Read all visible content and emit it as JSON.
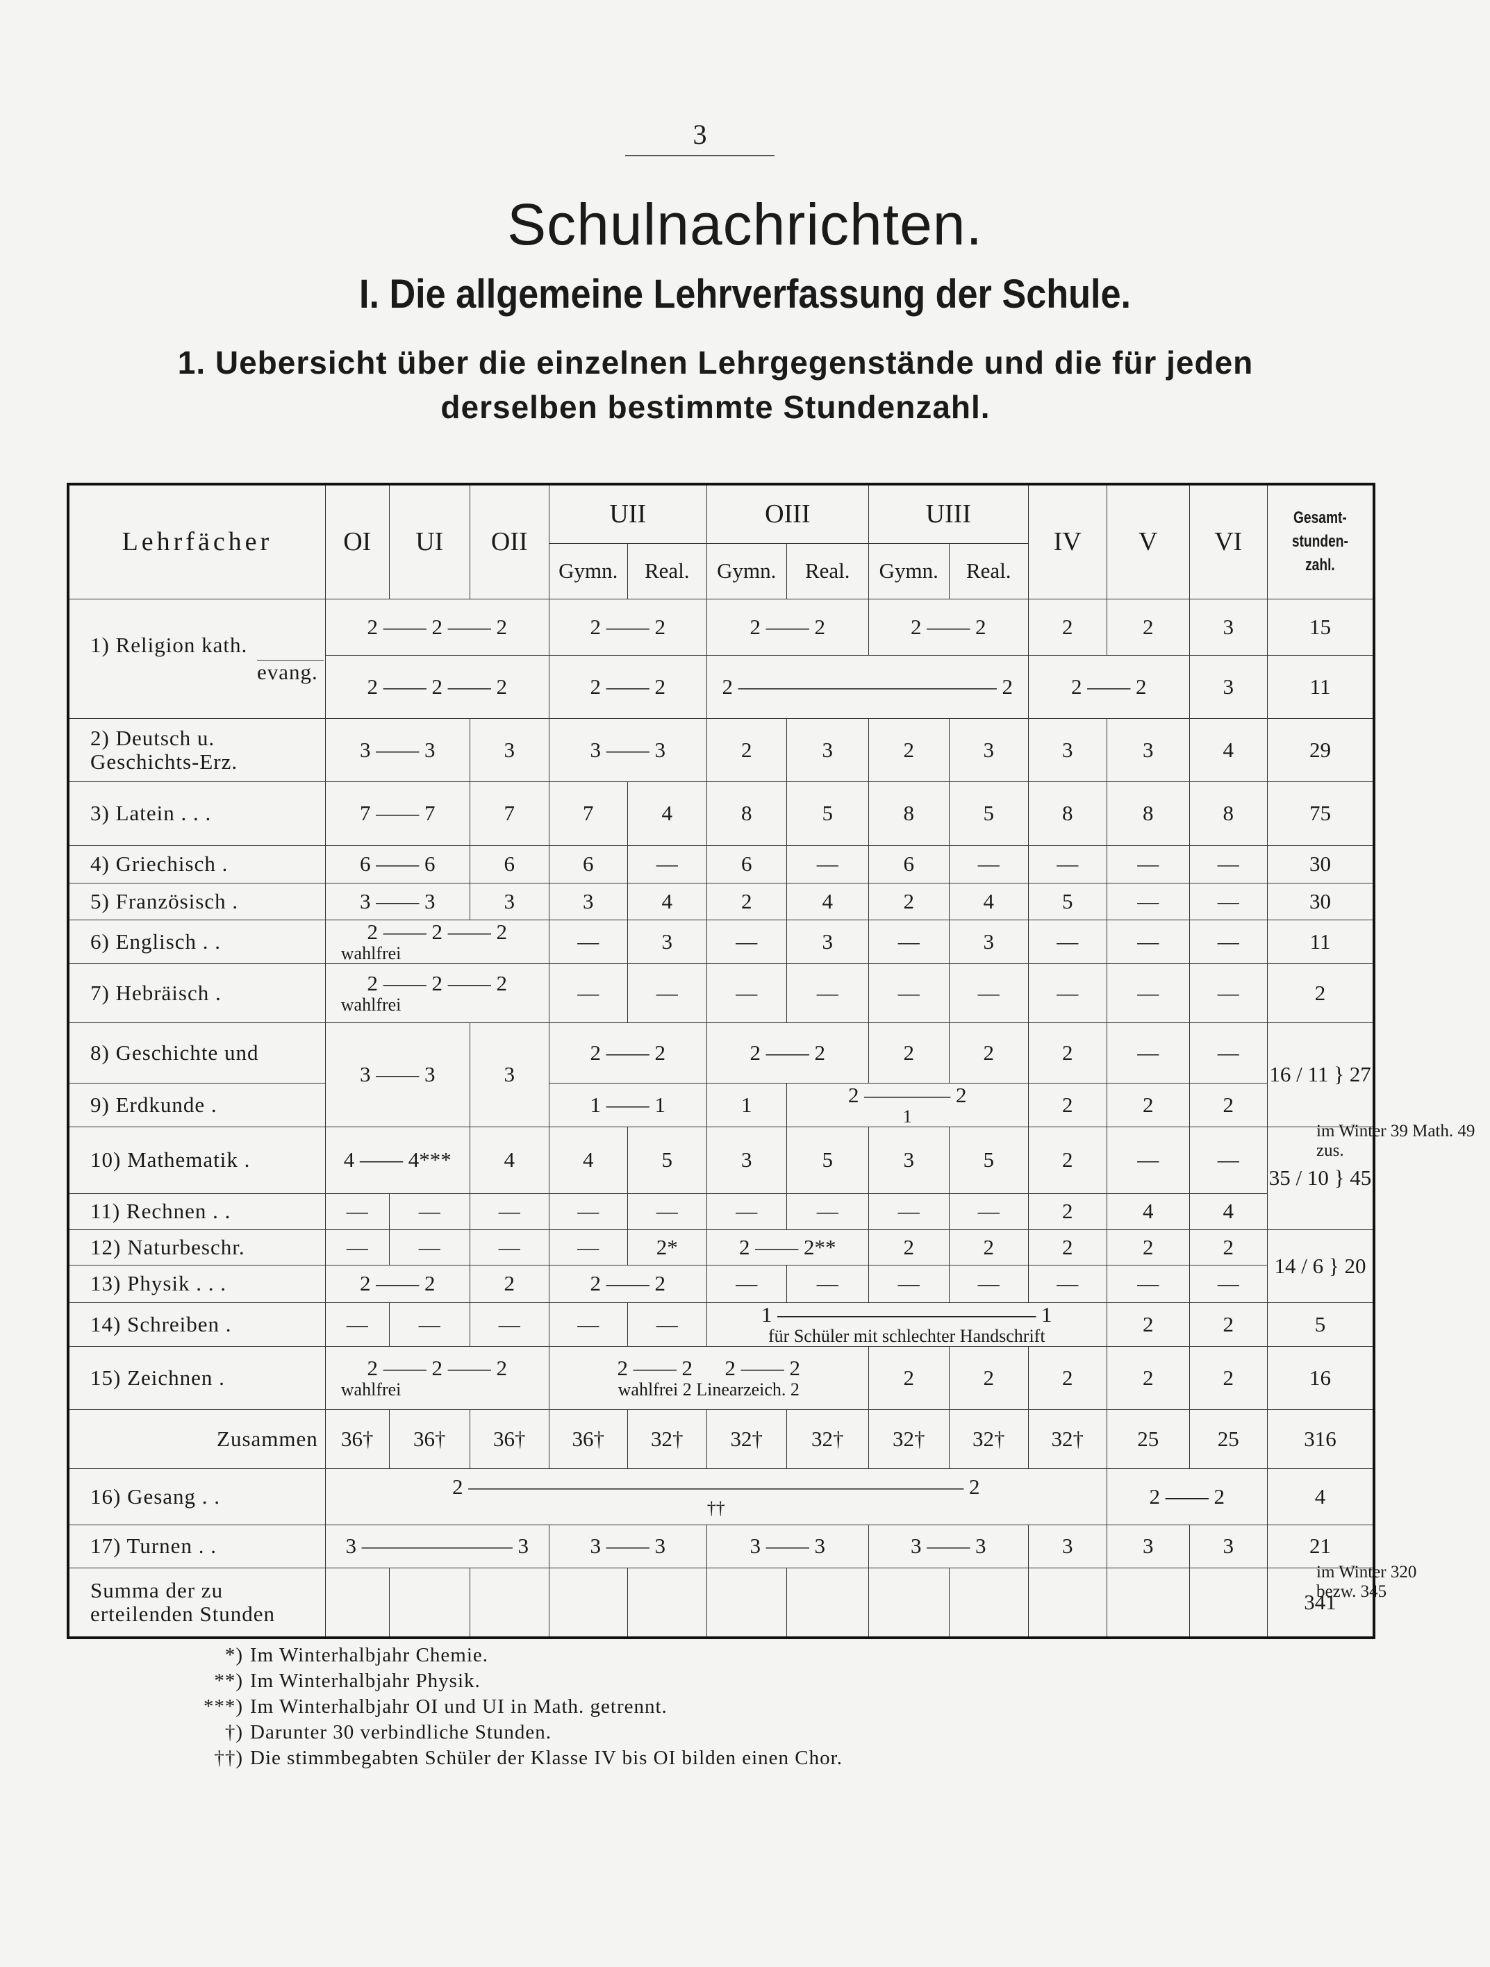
{
  "page_number": "3",
  "title": "Schulnachrichten.",
  "heading": "I. Die allgemeine Lehrverfassung der Schule.",
  "subheading": "1. Uebersicht über die einzelnen Lehrgegenstände und die für jeden derselben bestimmte Stundenzahl.",
  "table": {
    "header": {
      "subject": "Lehrfächer",
      "classes": [
        "OI",
        "UI",
        "OII",
        "UII",
        "OIII",
        "UIII",
        "IV",
        "V",
        "VI"
      ],
      "sub": [
        "Gymn.",
        "Real."
      ],
      "total": "Gesamt-stunden-zahl."
    },
    "rows": [
      {
        "subject": "1) Religion kath.",
        "cells": [
          {
            "v": "2 —— 2 —— 2",
            "classes": 3
          },
          {
            "v": "2 —— 2",
            "classes": 2
          },
          {
            "v": "2 —— 2",
            "classes": 2
          },
          {
            "v": "2 —— 2",
            "classes": 2
          },
          {
            "v": "2"
          },
          {
            "v": "2"
          },
          {
            "v": "3"
          },
          {
            "v": "15"
          }
        ]
      },
      {
        "subject": "evang.",
        "cells": [
          {
            "v": "2 —— 2 —— 2",
            "classes": 3
          },
          {
            "v": "2 —— 2",
            "classes": 2
          },
          {
            "v": "2 ———————————— 2",
            "classes": 4
          },
          {
            "v": "2 —— 2",
            "classes": 2
          },
          {
            "v": "3"
          },
          {
            "v": "11"
          }
        ]
      },
      {
        "subject": "2) Deutsch u. Geschichts-Erz.",
        "cells": [
          {
            "v": "3 —— 3",
            "classes": 2
          },
          {
            "v": "3"
          },
          {
            "v": "3 —— 3",
            "classes": 2
          },
          {
            "v": "2"
          },
          {
            "v": "3"
          },
          {
            "v": "2"
          },
          {
            "v": "3"
          },
          {
            "v": "3"
          },
          {
            "v": "3"
          },
          {
            "v": "4"
          },
          {
            "v": "29"
          }
        ]
      },
      {
        "subject": "3) Latein . . .",
        "cells": [
          {
            "v": "7 —— 7",
            "classes": 2
          },
          {
            "v": "7"
          },
          {
            "v": "7"
          },
          {
            "v": "4"
          },
          {
            "v": "8"
          },
          {
            "v": "5"
          },
          {
            "v": "8"
          },
          {
            "v": "5"
          },
          {
            "v": "8"
          },
          {
            "v": "8"
          },
          {
            "v": "8"
          },
          {
            "v": "75"
          }
        ]
      },
      {
        "subject": "4) Griechisch .",
        "cells": [
          {
            "v": "6 —— 6",
            "classes": 2
          },
          {
            "v": "6"
          },
          {
            "v": "6"
          },
          {
            "v": "—"
          },
          {
            "v": "6"
          },
          {
            "v": "—"
          },
          {
            "v": "6"
          },
          {
            "v": "—"
          },
          {
            "v": "—"
          },
          {
            "v": "—"
          },
          {
            "v": "—"
          },
          {
            "v": "30"
          }
        ]
      },
      {
        "subject": "5) Französisch .",
        "cells": [
          {
            "v": "3 —— 3",
            "classes": 2
          },
          {
            "v": "3"
          },
          {
            "v": "3"
          },
          {
            "v": "4"
          },
          {
            "v": "2"
          },
          {
            "v": "4"
          },
          {
            "v": "2"
          },
          {
            "v": "4"
          },
          {
            "v": "5"
          },
          {
            "v": "—"
          },
          {
            "v": "—"
          },
          {
            "v": "30"
          }
        ]
      },
      {
        "subject": "6) Englisch . .",
        "cells": [
          {
            "v": "2 —— 2 —— 2",
            "note": "wahlfrei",
            "classes": 3
          },
          {
            "v": "—"
          },
          {
            "v": "3"
          },
          {
            "v": "—"
          },
          {
            "v": "3"
          },
          {
            "v": "—"
          },
          {
            "v": "3"
          },
          {
            "v": "—"
          },
          {
            "v": "—"
          },
          {
            "v": "—"
          },
          {
            "v": "11"
          }
        ]
      },
      {
        "subject": "7) Hebräisch .",
        "cells": [
          {
            "v": "2 —— 2 —— 2",
            "note": "wahlfrei",
            "classes": 3
          },
          {
            "v": "—"
          },
          {
            "v": "—"
          },
          {
            "v": "—"
          },
          {
            "v": "—"
          },
          {
            "v": "—"
          },
          {
            "v": "—"
          },
          {
            "v": "—"
          },
          {
            "v": "—"
          },
          {
            "v": "—"
          },
          {
            "v": "2"
          }
        ]
      },
      {
        "subject": "8) Geschichte und",
        "cells": [
          {
            "v": "3 —— 3",
            "classes": 2,
            "rows": 2
          },
          {
            "v": "3",
            "rows": 2
          },
          {
            "v": "2 —— 2",
            "classes": 2
          },
          {
            "v": "2 —— 2",
            "classes": 2
          },
          {
            "v": "2"
          },
          {
            "v": "2"
          },
          {
            "v": "2"
          },
          {
            "v": "—"
          },
          {
            "v": "—"
          },
          {
            "v": "16 / 11 } 27",
            "rows": 2
          }
        ]
      },
      {
        "subject": "9) Erdkunde .",
        "cells": [
          {
            "v": "1 —— 1",
            "classes": 2
          },
          {
            "v": "1"
          },
          {
            "v": "2 ———— 2",
            "note": "1",
            "classes": 3
          },
          {
            "v": "2"
          },
          {
            "v": "2"
          },
          {
            "v": "2"
          }
        ]
      },
      {
        "subject": "10) Mathematik .",
        "cells": [
          {
            "v": "4 —— 4***",
            "classes": 2
          },
          {
            "v": "4"
          },
          {
            "v": "4"
          },
          {
            "v": "5"
          },
          {
            "v": "3"
          },
          {
            "v": "5"
          },
          {
            "v": "3"
          },
          {
            "v": "5"
          },
          {
            "v": "2"
          },
          {
            "v": "—"
          },
          {
            "v": "—"
          },
          {
            "v": "35 / 10 } 45",
            "rows": 2
          }
        ]
      },
      {
        "subject": "11) Rechnen . .",
        "cells": [
          {
            "v": "—"
          },
          {
            "v": "—"
          },
          {
            "v": "—"
          },
          {
            "v": "—"
          },
          {
            "v": "—"
          },
          {
            "v": "—"
          },
          {
            "v": "—"
          },
          {
            "v": "—"
          },
          {
            "v": "—"
          },
          {
            "v": "2"
          },
          {
            "v": "4"
          },
          {
            "v": "4"
          }
        ]
      },
      {
        "subject": "12) Naturbeschr.",
        "cells": [
          {
            "v": "—"
          },
          {
            "v": "—"
          },
          {
            "v": "—"
          },
          {
            "v": "—"
          },
          {
            "v": "2*"
          },
          {
            "v": "2 —— 2**",
            "classes": 2
          },
          {
            "v": "2"
          },
          {
            "v": "2"
          },
          {
            "v": "2"
          },
          {
            "v": "2"
          },
          {
            "v": "2"
          },
          {
            "v": "14 / 6 } 20",
            "rows": 2
          }
        ]
      },
      {
        "subject": "13) Physik . . .",
        "cells": [
          {
            "v": "2 —— 2",
            "classes": 2
          },
          {
            "v": "2"
          },
          {
            "v": "2 —— 2",
            "classes": 2
          },
          {
            "v": "—"
          },
          {
            "v": "—"
          },
          {
            "v": "—"
          },
          {
            "v": "—"
          },
          {
            "v": "—"
          },
          {
            "v": "—"
          },
          {
            "v": "—"
          }
        ]
      },
      {
        "subject": "14) Schreiben .",
        "cells": [
          {
            "v": "—"
          },
          {
            "v": "—"
          },
          {
            "v": "—"
          },
          {
            "v": "—"
          },
          {
            "v": "—"
          },
          {
            "v": "1 ———————————— 1",
            "note": "für Schüler mit schlechter Handschrift",
            "classes": 5
          },
          {
            "v": "2"
          },
          {
            "v": "2"
          },
          {
            "v": "5"
          }
        ]
      },
      {
        "subject": "15) Zeichnen .",
        "cells": [
          {
            "v": "2 —— 2 —— 2",
            "note": "wahlfrei",
            "classes": 3
          },
          {
            "v": "2 —— 2      2 —— 2",
            "note": "wahlfrei 2 Linearzeich. 2",
            "classes": 4
          },
          {
            "v": "2"
          },
          {
            "v": "2"
          },
          {
            "v": "2"
          },
          {
            "v": "2"
          },
          {
            "v": "2"
          },
          {
            "v": "16"
          }
        ]
      },
      {
        "subject": "Zusammen",
        "cells": [
          {
            "v": "36†"
          },
          {
            "v": "36†"
          },
          {
            "v": "36†"
          },
          {
            "v": "36†"
          },
          {
            "v": "32†"
          },
          {
            "v": "32†"
          },
          {
            "v": "32†"
          },
          {
            "v": "32†"
          },
          {
            "v": "32†"
          },
          {
            "v": "32†"
          },
          {
            "v": "25"
          },
          {
            "v": "25"
          },
          {
            "v": "316"
          }
        ]
      },
      {
        "subject": "16) Gesang . .",
        "cells": [
          {
            "v": "2 ——————————————————————— 2",
            "note": "††",
            "classes": 10
          },
          {
            "v": "2 —— 2",
            "classes": 2
          },
          {
            "v": "4"
          }
        ]
      },
      {
        "subject": "17) Turnen . .",
        "cells": [
          {
            "v": "3 ——————— 3",
            "classes": 3
          },
          {
            "v": "3 —— 3",
            "classes": 2
          },
          {
            "v": "3 —— 3",
            "classes": 2
          },
          {
            "v": "3 —— 3",
            "classes": 2
          },
          {
            "v": "3"
          },
          {
            "v": "3"
          },
          {
            "v": "3"
          },
          {
            "v": "21"
          }
        ]
      },
      {
        "subject": "Summa der zu erteilenden Stunden",
        "cells": [
          {
            "v": ""
          },
          {
            "v": ""
          },
          {
            "v": ""
          },
          {
            "v": ""
          },
          {
            "v": ""
          },
          {
            "v": ""
          },
          {
            "v": ""
          },
          {
            "v": ""
          },
          {
            "v": ""
          },
          {
            "v": ""
          },
          {
            "v": ""
          },
          {
            "v": ""
          },
          {
            "v": "341"
          }
        ]
      }
    ]
  },
  "side_notes": {
    "math": "im Winter 39 Math. 49 zus.",
    "summa": "im Winter 320 bezw. 345"
  },
  "footnotes": [
    {
      "mark": "*)",
      "text": "Im Winterhalbjahr Chemie."
    },
    {
      "mark": "**)",
      "text": "Im Winterhalbjahr Physik."
    },
    {
      "mark": "***)",
      "text": "Im Winterhalbjahr OI und UI in Math. getrennt."
    },
    {
      "mark": "†)",
      "text": "Darunter 30 verbindliche Stunden."
    },
    {
      "mark": "††)",
      "text": "Die stimmbegabten Schüler der Klasse IV bis OI bilden einen Chor."
    }
  ]
}
